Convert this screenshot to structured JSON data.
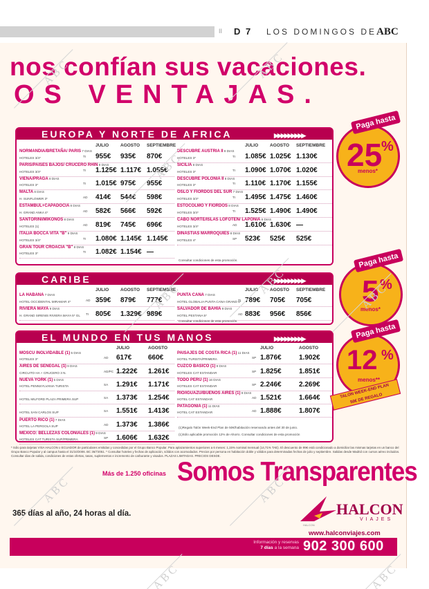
{
  "header": {
    "separator": "II",
    "page": "D 7",
    "section": "LOS DOMINGOS DE",
    "logo": "ABC"
  },
  "headline": {
    "line1": "nos confían sus vacaciones.",
    "line2": "OS VENTAJAS."
  },
  "watermark": "ABC",
  "europa": {
    "title": "EUROPA Y NORTE DE AFRICA",
    "cols": [
      "JULIO",
      "AGOSTO",
      "SEPTIEMBRE"
    ],
    "left": [
      {
        "dest": "NORMANDIA/BRETAÑA/ PARIS",
        "days": "7 DIAS",
        "hotel": "HOTELES 3/4*",
        "reg": "TI",
        "p": [
          "955€",
          "935€",
          "870€"
        ]
      },
      {
        "dest": "PARIS/PAISES BAJOS/ CRUCERO RHIN",
        "days": "9 DIAS",
        "hotel": "HOTELES 3/4*",
        "reg": "TI",
        "p": [
          "1.125€",
          "1.117€",
          "1.055€"
        ]
      },
      {
        "dest": "VIENA/PRAGA",
        "days": "8 DIAS",
        "hotel": "HOTELES 3*",
        "reg": "TI",
        "p": [
          "1.015€",
          "975€",
          "955€"
        ]
      },
      {
        "dest": "MALTA",
        "days": "8 DIAS",
        "hotel": "H. SUNFLOWER 3*",
        "reg": "AD",
        "p": [
          "414€",
          "544€",
          "598€"
        ]
      },
      {
        "dest": "ESTAMBUL+CAPADOCIA",
        "days": "8 DIAS",
        "hotel": "H. GRAND ANKA 4*",
        "reg": "AD",
        "p": [
          "582€",
          "566€",
          "592€"
        ]
      },
      {
        "dest": "SANTORINI/MIKONOS",
        "days": "8 DIAS",
        "hotel": "HOTELES (1)",
        "reg": "AD",
        "p": [
          "819€",
          "745€",
          "696€"
        ]
      },
      {
        "dest": "ITALIA BOCCA VITA \"B\"",
        "days": "9 DIAS",
        "hotel": "HOTELES 3/4*",
        "reg": "TI",
        "p": [
          "1.080€",
          "1.145€",
          "1.145€"
        ]
      },
      {
        "dest": "GRAN TOUR CROACIA \"B\"",
        "days": "8 DIAS",
        "hotel": "HOTELES 3*",
        "reg": "TI",
        "p": [
          "1.082€",
          "1.154€",
          "—"
        ]
      }
    ],
    "right": [
      {
        "dest": "DESCUBRE AUSTRIA II",
        "days": "8 DIAS",
        "hotel": "HOTELES 3*",
        "reg": "TI",
        "p": [
          "1.085€",
          "1.025€",
          "1.130€"
        ]
      },
      {
        "dest": "SICILIA",
        "days": "8 DIAS",
        "hotel": "HOTELES 3*",
        "reg": "TI",
        "p": [
          "1.090€",
          "1.070€",
          "1.020€"
        ]
      },
      {
        "dest": "DESCUBRE POLONIA II",
        "days": "8 DIAS",
        "hotel": "HOTELES 3*",
        "reg": "TI",
        "p": [
          "1.110€",
          "1.170€",
          "1.155€"
        ]
      },
      {
        "dest": "OSLO Y FIORDOS DEL SUR",
        "days": "7 DIAS",
        "hotel": "HOTELES 3/4*",
        "reg": "TI",
        "p": [
          "1.495€",
          "1.475€",
          "1.460€"
        ]
      },
      {
        "dest": "ESTOCOLMO Y FIORDOS",
        "days": "8 DIAS",
        "hotel": "HOTELES 3/4*",
        "reg": "TI",
        "p": [
          "1.525€",
          "1.490€",
          "1.490€"
        ]
      },
      {
        "dest": "CABO NORTE/ISLAS LOFOTEN/ LAPONIA",
        "days": "8 DIAS",
        "hotel": "HOTELES 3/4*",
        "reg": "AD",
        "p": [
          "1.610€",
          "1.630€",
          "—"
        ]
      },
      {
        "dest": "DINASTIAS MARROQUIES",
        "days": "8 DIAS",
        "hotel": "HOTELES 4*",
        "reg": "SP",
        "p": [
          "523€",
          "525€",
          "525€"
        ]
      }
    ],
    "note": "Consultar condiciones de esta promoción."
  },
  "caribe": {
    "title": "CARIBE",
    "cols": [
      "JULIO",
      "AGOSTO",
      "SEPTIEMBRE"
    ],
    "left": [
      {
        "dest": "LA HABANA",
        "days": "7 DIAS",
        "hotel": "HOTEL OCCIDENTAL MIRAMAR 4*",
        "reg": "AD",
        "p": [
          "359€",
          "879€",
          "777€"
        ]
      },
      {
        "dest": "RIVIERA MAYA",
        "days": "9 DIAS",
        "hotel": "H. GRAND SIRENIS RIVIERA MAYA 5* GL",
        "reg": "TI",
        "p": [
          "805€",
          "1.329€",
          "989€"
        ]
      }
    ],
    "right": [
      {
        "dest": "PUNTA CANA",
        "days": "7 DIAS",
        "hotel": "HOTEL GLOBALIA PUNTA CANA GRAND 5*",
        "reg": "TI",
        "p": [
          "789€",
          "705€",
          "705€"
        ]
      },
      {
        "dest": "SALVADOR DE BAHIA",
        "days": "9 DIAS",
        "hotel": "HOTEL PESTANA 5*",
        "reg": "AD",
        "p": [
          "883€",
          "956€",
          "856€"
        ]
      }
    ],
    "note": "Consultar condiciones de esta promoción."
  },
  "mundo": {
    "title": "EL MUNDO EN TUS MANOS",
    "cols": [
      "JULIO",
      "AGOSTO"
    ],
    "left": [
      {
        "dest": "MOSCU INOLVIDABLE (1)",
        "days": "5 DIAS",
        "hotel": "HOTELES 3*",
        "reg": "AD",
        "p": [
          "617€",
          "660€"
        ]
      },
      {
        "dest": "AIRES DE SENEGAL (1)",
        "days": "9 DIAS",
        "hotel": "CIRCUITO HA + CRUCERO 3 N.",
        "reg": "AD/PC",
        "p": [
          "1.222€",
          "1.261€"
        ]
      },
      {
        "dest": "NUEVA YORK (1)",
        "days": "5 DIAS",
        "hotel": "HOTEL PENNSYLVANIA TURISTA",
        "reg": "SA",
        "p": [
          "1.291€",
          "1.171€"
        ]
      },
      {
        "dest": "",
        "days": "",
        "hotel": "HOTEL MILFORD PLAZA PRIMERA SUP",
        "reg": "SA",
        "p": [
          "1.373€",
          "1.254€"
        ]
      },
      {
        "dest": "",
        "days": "",
        "hotel": "HOTEL SAN CARLOS SUP",
        "reg": "SA",
        "p": [
          "1.551€",
          "1.413€"
        ]
      },
      {
        "dest": "PUERTO RICO (1)",
        "days": "7 DIAS",
        "hotel": "HOTEL LA PERGOLA SUP",
        "reg": "AD",
        "p": [
          "1.373€",
          "1.386€"
        ]
      },
      {
        "dest": "MEXICO: BELLEZAS COLONIALES (1)",
        "days": "9 DIAS",
        "hotel": "HOTELES CAT TURISTA SUP/PRIMERA",
        "reg": "SP",
        "p": [
          "1.606€",
          "1.632€"
        ]
      }
    ],
    "right": [
      {
        "dest": "PAISAJES DE COSTA RICA (1)",
        "days": "11 DIAS",
        "hotel": "HOTEL TURISTA/PRIMERA",
        "reg": "SP",
        "p": [
          "1.876€",
          "1.902€"
        ]
      },
      {
        "dest": "CUZCO BASICO (1)",
        "days": "9 DIAS",
        "hotel": "HOTELES CAT ESTANDAR",
        "reg": "SP",
        "p": [
          "1.825€",
          "1.851€"
        ]
      },
      {
        "dest": "TODO PERU (1)",
        "days": "16 DIAS",
        "hotel": "HOTELES CAT ESTANDAR",
        "reg": "SP",
        "p": [
          "2.246€",
          "2.269€"
        ]
      },
      {
        "dest": "RIO/IGUAZU/BUENOS AIRES (1)",
        "days": "9 DIAS",
        "hotel": "HOTEL CAT ESTANDAR",
        "reg": "AD",
        "p": [
          "1.521€",
          "1.664€"
        ]
      },
      {
        "dest": "PATAGONIA (1)",
        "days": "11 DIAS",
        "hotel": "HOTEL CAT ESTANDAR",
        "reg": "AD",
        "p": [
          "1.888€",
          "1.807€"
        ]
      }
    ],
    "notes": [
      "(1)Regalo Talón Week-End Plan de 50€/habitación reservando antes del 30 de junio.",
      "(1)Sólo aplicable promoción 12% de Ahorro. Consultar condiciones de esta promoción"
    ]
  },
  "badges": [
    {
      "tag": "Paga hasta",
      "num": "25",
      "pct": "%",
      "menos": "menos*"
    },
    {
      "tag": "Paga hasta",
      "num": "5",
      "pct": "%",
      "menos": "menos*"
    },
    {
      "tag": "Paga hasta",
      "num": "12",
      "pct": "%",
      "menos": "menos**"
    }
  ],
  "talon": {
    "line1": "TALON WEEK-END PLAN",
    "line2": "50€ DE REGALO"
  },
  "legal": "* Sólo para tarjetas VISA HALCON o ECUADOR de particulares emitidas y concedidas por el Grupo Banco Popular. Para aplazamientos superiores a 6 meses: 1,15% nominal mensual (14,71% TAE). El descuento de 99€ está condicionado a domiciliar las mismas tarjetas en un banco del Grupo Banco Popular y al campus hasta el 31/10/2006. BC 36/72051. * Consultar hoteles y fechas de aplicación, sólidos con acomodados. Precios por persona en habitación doble y válidos para determinadas fechas de julio y septiembre. Salidas desde Madrid con cursos aéreo incluidos. Consultar dias de salida, condiciones de estas ofertas, tasas, suplementos e incremento de carburante y visados. PLAZAS LIMITADAS. PRECIOS DESDE.",
  "footer": {
    "mas": "Más de 1.250 oficinas",
    "somos": "Somos Transparentes",
    "dias": "365 días al año, 24 horas al día.",
    "brand": "HALCON",
    "brand_sub": "VIAJES",
    "brand_tiny": "HALCON",
    "web": "www.halconviajes.com",
    "info1": "Información y reservas",
    "info2a": "7 días",
    "info2b": "a la semana",
    "phone": "902 300 600"
  },
  "colors": {
    "magenta": "#c8005c",
    "orange": "#f7b21a"
  }
}
